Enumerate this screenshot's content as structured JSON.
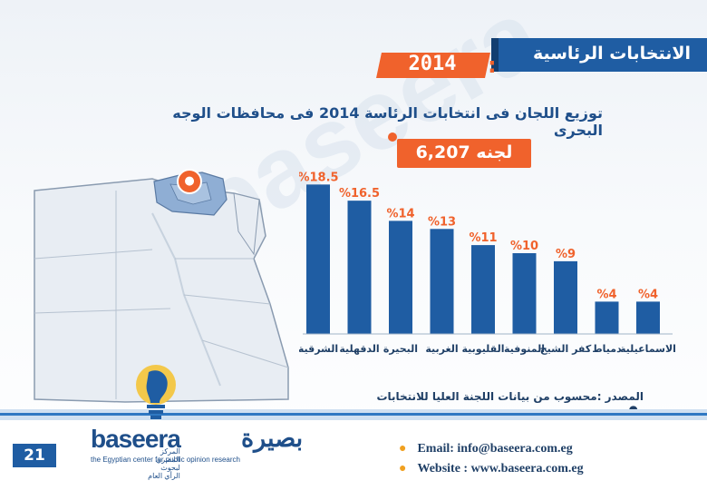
{
  "header": {
    "title": "الانتخابات الرئاسية",
    "year": "2014"
  },
  "subtitle": "توزيع اللجان فى انتخابات الرئاسة 2014 فى محافظات الوجه البحرى",
  "total": "6,207 لجنه",
  "watermark": "baseera",
  "colors": {
    "bar": "#1f5da3",
    "accent": "#f0622c",
    "label": "#f0622c",
    "category": "#1f3f66"
  },
  "chart_data": {
    "type": "bar",
    "categories": [
      "الشرقية",
      "الدقهلية",
      "البحيرة",
      "الغربية",
      "القليوبية",
      "المنوفية",
      "كفر الشيخ",
      "دمياط",
      "الاسماعيلية"
    ],
    "values": [
      18.5,
      16.5,
      14,
      13,
      11,
      10,
      9,
      4,
      4
    ],
    "labels": [
      "%18.5",
      "%16.5",
      "%14",
      "%13",
      "%11",
      "%10",
      "%9",
      "%4",
      "%4"
    ],
    "ylim": [
      0,
      20
    ]
  },
  "source": "المصدر :محسوب من بيانات اللجنة العليا للانتخابات",
  "footer": {
    "page": "21",
    "email": "Email: info@baseera.com.eg",
    "website": "Website : www.baseera.com.eg",
    "logo_en": "baseera",
    "logo_ar": "بصيرة",
    "logo_tag_ar": "المركز المصري لبحوث الرأي العام",
    "logo_tag_en": "the Egyptian center for public opinion research"
  }
}
